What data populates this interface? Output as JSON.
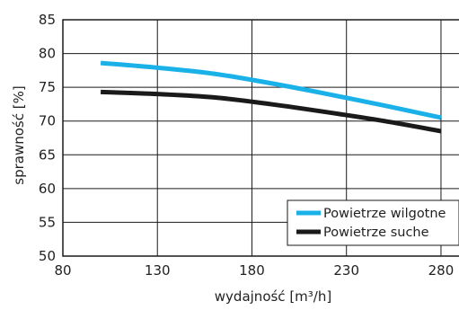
{
  "chart_data": {
    "type": "line",
    "xlabel": "wydajność [m³/h]",
    "ylabel": "sprawność  [%]",
    "xlim": [
      80,
      290
    ],
    "ylim": [
      50,
      85
    ],
    "xticks": [
      80,
      130,
      180,
      230,
      280
    ],
    "yticks": [
      50,
      55,
      60,
      65,
      70,
      75,
      80,
      85
    ],
    "grid": true,
    "legend_position": "bottom-right",
    "series": [
      {
        "name": "Powietrze wilgotne",
        "color": "#1ab0e8",
        "x": [
          100,
          130,
          160,
          190,
          220,
          250,
          280
        ],
        "y": [
          78.6,
          77.9,
          77.0,
          75.6,
          74.0,
          72.3,
          70.5
        ]
      },
      {
        "name": "Powietrze suche",
        "color": "#1a1a1a",
        "x": [
          100,
          130,
          160,
          190,
          220,
          250,
          280
        ],
        "y": [
          74.3,
          74.0,
          73.5,
          72.5,
          71.3,
          70.0,
          68.5
        ]
      }
    ]
  }
}
